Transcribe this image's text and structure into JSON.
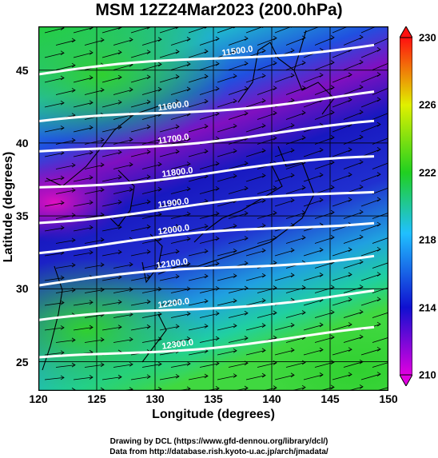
{
  "title": "MSM 12Z24Mar2023 (200.0hPa)",
  "xlabel": "Longitude (degrees)",
  "ylabel": "Latitude  (degrees)",
  "credit_line1": "Drawing by DCL (https://www.gfd-dennou.org/library/dcl/)",
  "credit_line2": "Data from http://database.rish.kyoto-u.ac.jp/arch/jmadata/",
  "x_ticks": [
    "120",
    "125",
    "130",
    "135",
    "140",
    "145",
    "150"
  ],
  "y_ticks": [
    "25",
    "30",
    "35",
    "40",
    "45"
  ],
  "colorbar_ticks": [
    "210",
    "214",
    "218",
    "222",
    "226",
    "230"
  ],
  "contour_labels": [
    "11500.0",
    "11600.0",
    "11700.0",
    "11800.0",
    "11900.0",
    "12000.0",
    "12100.0",
    "12200.0",
    "12300.0"
  ],
  "colors": {
    "cb_magenta": "#e000e0",
    "cb_blue": "#1010d0",
    "cb_cyan": "#20c0ff",
    "cb_green": "#20d020",
    "cb_yellow": "#e0f000",
    "cb_red": "#ff1010"
  },
  "chart_data": {
    "type": "heatmap",
    "xlim": [
      120,
      150
    ],
    "ylim": [
      23,
      48
    ],
    "colorbar_range": [
      210,
      230
    ],
    "contour_levels": [
      11500,
      11600,
      11700,
      11800,
      11900,
      12000,
      12100,
      12200,
      12300
    ]
  }
}
